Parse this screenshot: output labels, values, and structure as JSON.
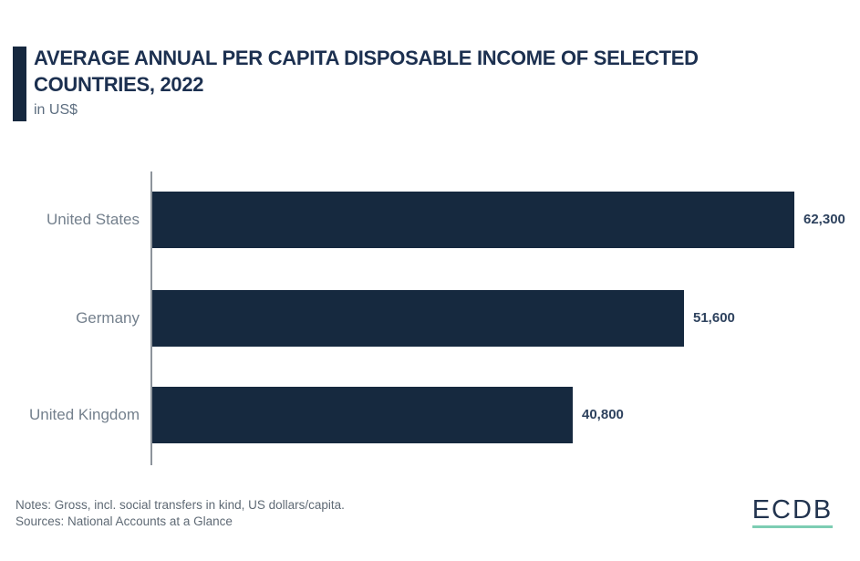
{
  "header": {
    "title": "AVERAGE ANNUAL PER CAPITA DISPOSABLE INCOME OF SELECTED COUNTRIES, 2022",
    "title_line1": "AVERAGE ANNUAL PER CAPITA DISPOSABLE INCOME OF SELECTED",
    "title_line2": "COUNTRIES, 2022",
    "subtitle": "in US$"
  },
  "chart_data": {
    "type": "bar",
    "orientation": "horizontal",
    "title": "AVERAGE ANNUAL PER CAPITA DISPOSABLE INCOME OF SELECTED COUNTRIES, 2022",
    "subtitle": "in US$",
    "unit": "US$",
    "categories": [
      "United States",
      "Germany",
      "United Kingdom"
    ],
    "values": [
      62300,
      51600,
      40800
    ],
    "value_labels": [
      "62,300",
      "51,600",
      "40,800"
    ],
    "xlabel": "",
    "ylabel": "",
    "xlim": [
      0,
      62300
    ],
    "grid": false,
    "legend": false,
    "data_labels_position": "outside-end"
  },
  "footer": {
    "notes": "Notes: Gross, incl. social transfers in kind, US dollars/capita.",
    "sources": "Sources: National Accounts at a Glance",
    "logo_text": "ECDB"
  },
  "colors": {
    "background": "#ffffff",
    "bar": "#16293f",
    "accent": "#16283f",
    "title": "#1c3050",
    "subtitle": "#5d6e80",
    "catlabel": "#74808d",
    "vallabel": "#2e425e",
    "axis": "#8d949c",
    "notes": "#5f6a75",
    "logotext": "#22344f",
    "logounderline": "#7dcdb3"
  }
}
